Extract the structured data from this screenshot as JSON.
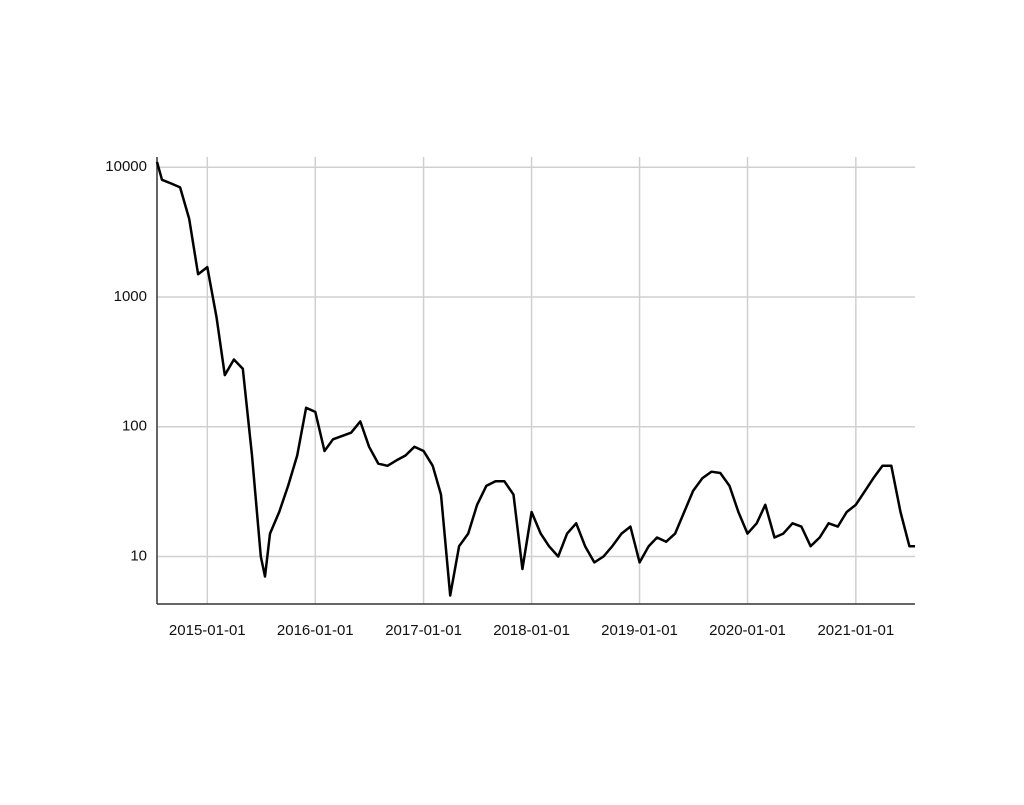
{
  "chart_data": {
    "type": "line",
    "x": [
      "2014-07-15",
      "2014-08-01",
      "2014-09-01",
      "2014-10-01",
      "2014-11-01",
      "2014-12-01",
      "2015-01-01",
      "2015-02-01",
      "2015-03-01",
      "2015-04-01",
      "2015-05-01",
      "2015-06-01",
      "2015-07-01",
      "2015-07-15",
      "2015-08-01",
      "2015-09-01",
      "2015-10-01",
      "2015-11-01",
      "2015-12-01",
      "2016-01-01",
      "2016-02-01",
      "2016-03-01",
      "2016-04-01",
      "2016-05-01",
      "2016-06-01",
      "2016-07-01",
      "2016-08-01",
      "2016-09-01",
      "2016-10-01",
      "2016-11-01",
      "2016-12-01",
      "2017-01-01",
      "2017-02-01",
      "2017-03-01",
      "2017-04-01",
      "2017-05-01",
      "2017-06-01",
      "2017-07-01",
      "2017-08-01",
      "2017-09-01",
      "2017-10-01",
      "2017-11-01",
      "2017-12-01",
      "2018-01-01",
      "2018-02-01",
      "2018-03-01",
      "2018-04-01",
      "2018-05-01",
      "2018-06-01",
      "2018-07-01",
      "2018-08-01",
      "2018-09-01",
      "2018-10-01",
      "2018-11-01",
      "2018-12-01",
      "2019-01-01",
      "2019-02-01",
      "2019-03-01",
      "2019-04-01",
      "2019-05-01",
      "2019-06-01",
      "2019-07-01",
      "2019-08-01",
      "2019-09-01",
      "2019-10-01",
      "2019-11-01",
      "2019-12-01",
      "2020-01-01",
      "2020-02-01",
      "2020-03-01",
      "2020-04-01",
      "2020-05-01",
      "2020-06-01",
      "2020-07-01",
      "2020-08-01",
      "2020-09-01",
      "2020-10-01",
      "2020-11-01",
      "2020-12-01",
      "2021-01-01",
      "2021-02-01",
      "2021-03-01",
      "2021-04-01",
      "2021-05-01",
      "2021-06-01",
      "2021-07-01",
      "2021-07-20"
    ],
    "values": [
      11000,
      8000,
      7500,
      7000,
      4000,
      1500,
      1700,
      700,
      250,
      330,
      280,
      60,
      10,
      7,
      15,
      22,
      35,
      60,
      140,
      130,
      65,
      80,
      85,
      90,
      110,
      70,
      52,
      50,
      55,
      60,
      70,
      65,
      50,
      30,
      5,
      12,
      15,
      25,
      35,
      38,
      38,
      30,
      8,
      22,
      15,
      12,
      10,
      15,
      18,
      12,
      9,
      10,
      12,
      15,
      17,
      9,
      12,
      14,
      13,
      15,
      22,
      32,
      40,
      45,
      44,
      35,
      22,
      15,
      18,
      25,
      14,
      15,
      18,
      17,
      12,
      14,
      18,
      17,
      22,
      25,
      32,
      40,
      50,
      50,
      22,
      12,
      12
    ],
    "color": "#000000",
    "xlim": [
      "2014-07-15",
      "2021-07-20"
    ],
    "xticks": [
      "2015-01-01",
      "2016-01-01",
      "2017-01-01",
      "2018-01-01",
      "2019-01-01",
      "2020-01-01",
      "2021-01-01"
    ],
    "ylim": [
      4.3,
      12000
    ],
    "yticks": [
      10,
      100,
      1000,
      10000
    ],
    "log_y": true,
    "grid": true
  }
}
